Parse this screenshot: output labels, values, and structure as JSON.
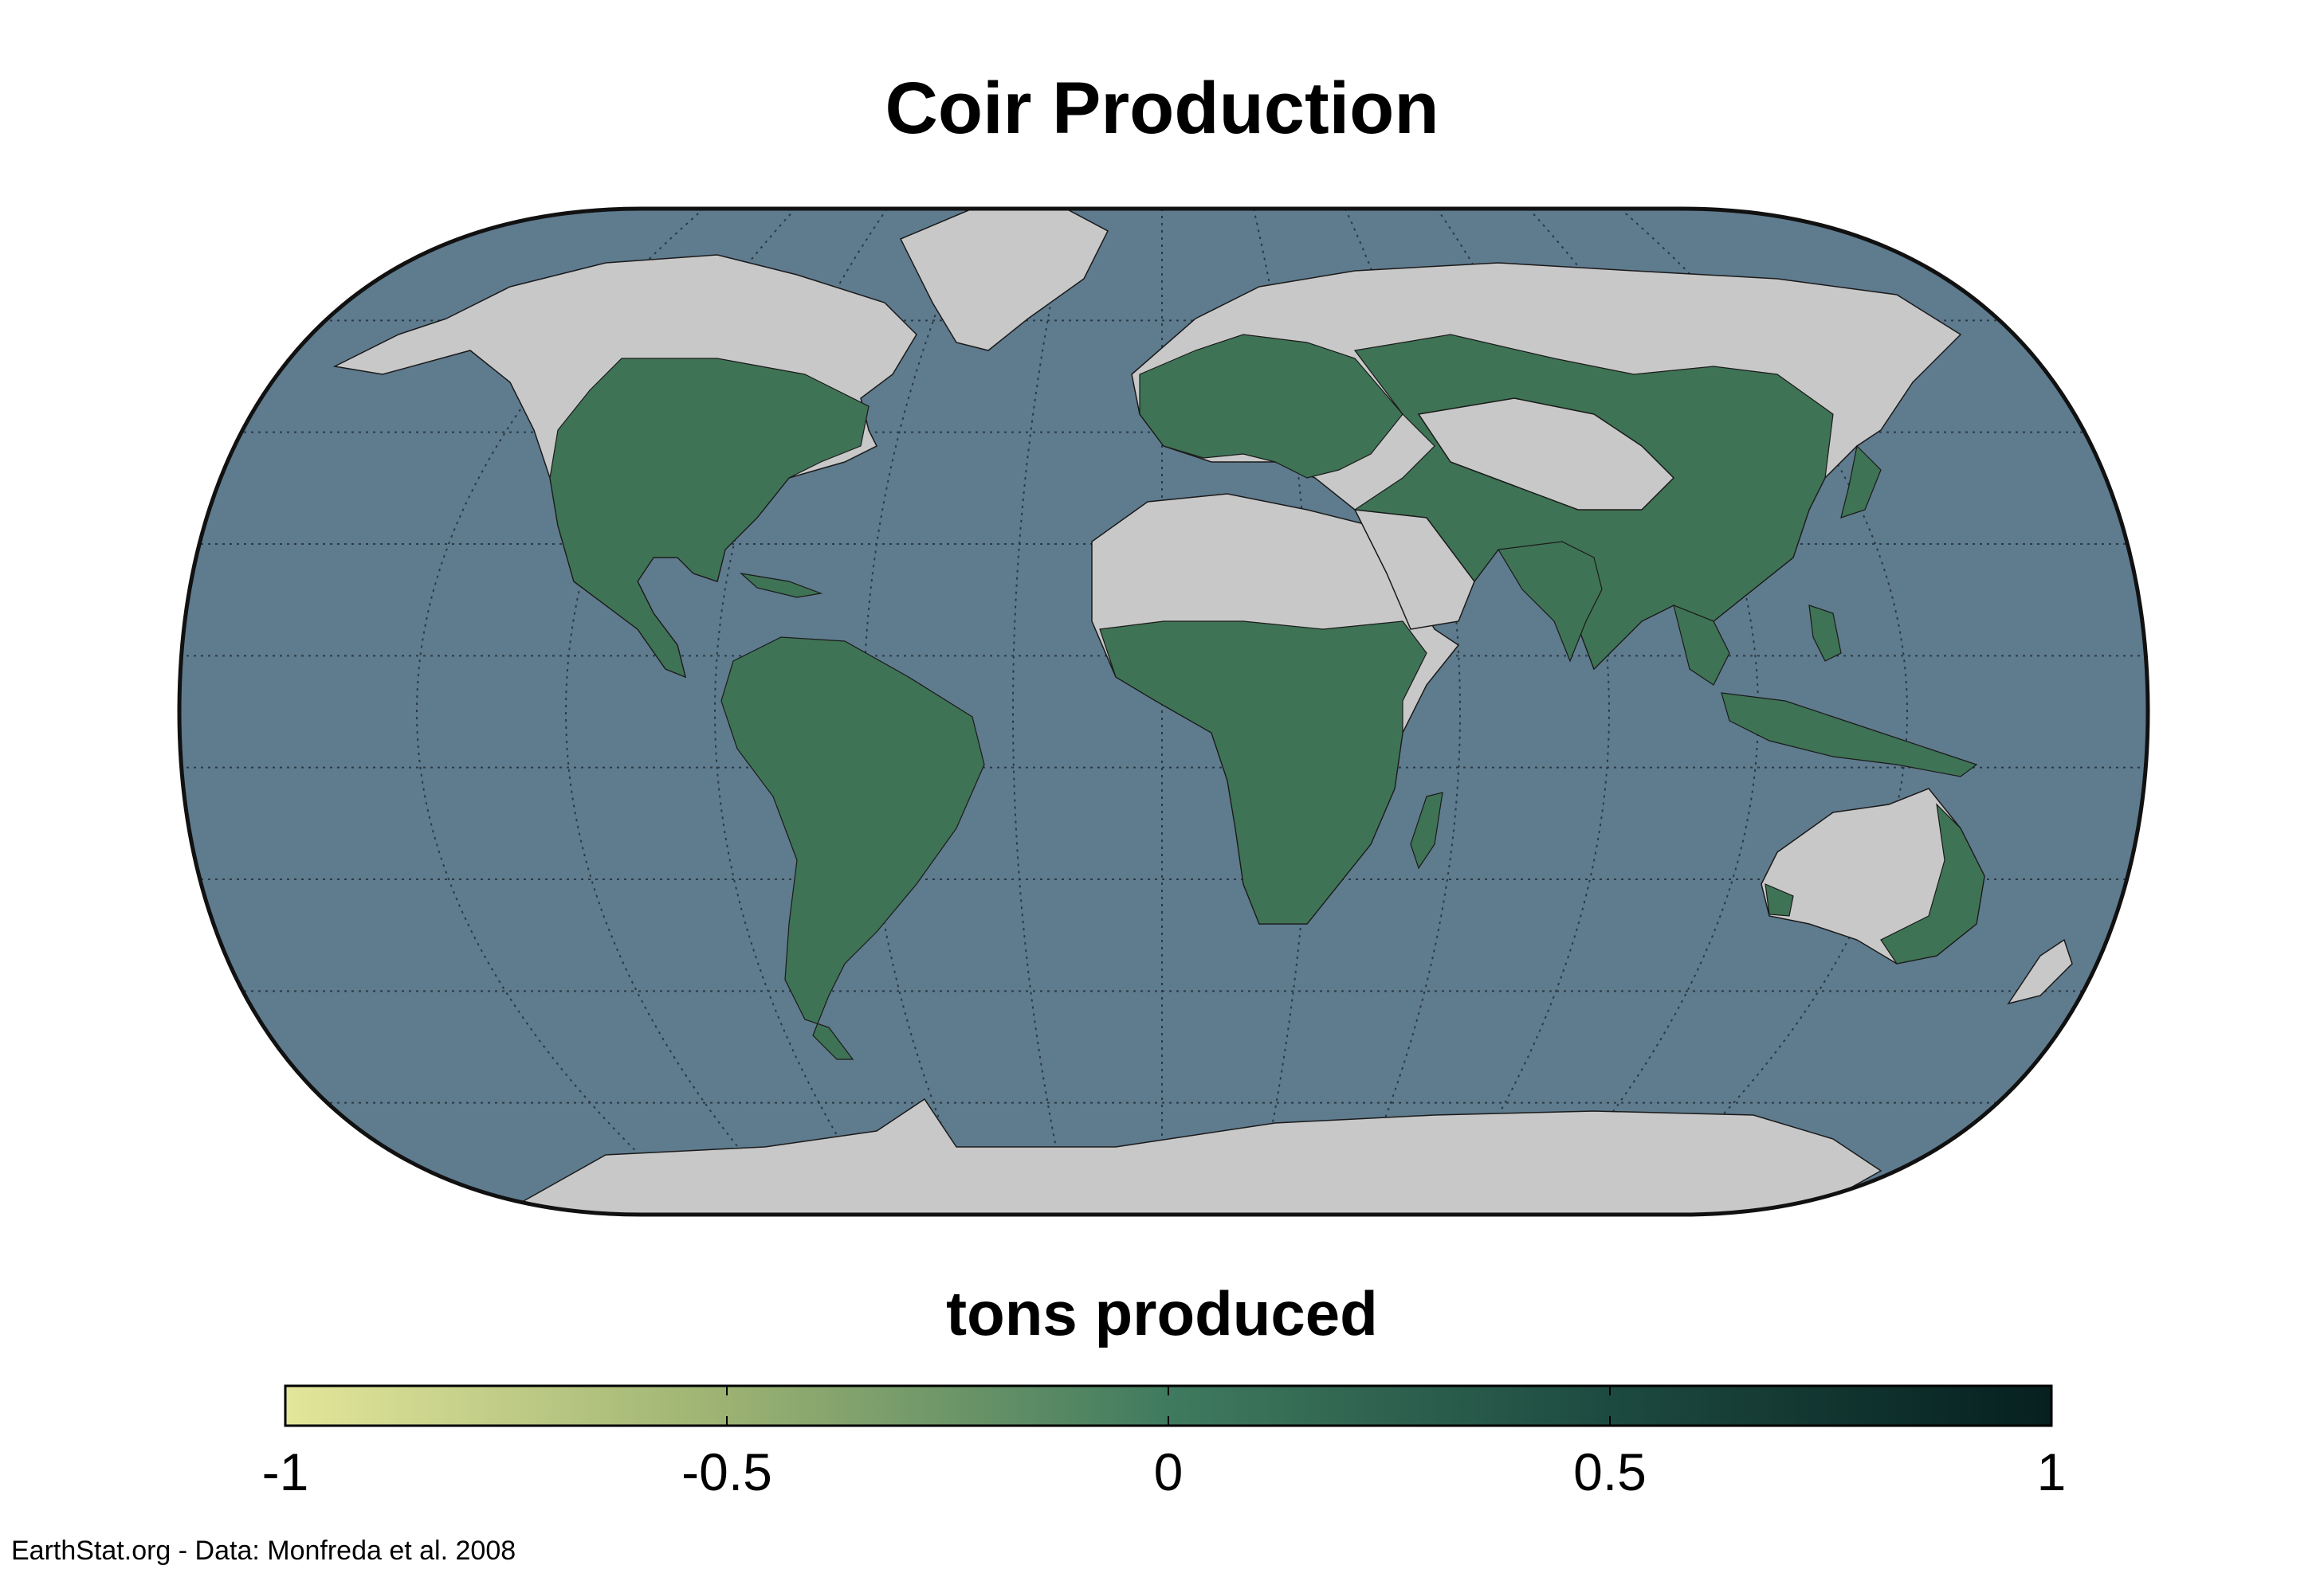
{
  "title": "Coir Production",
  "colors": {
    "ocean": "#5f7b8e",
    "land_empty": "#c8c8c8",
    "land_production": "#3f7355",
    "borders": "#1a1a1a",
    "frame": "#111111",
    "graticule": "#2a3a44"
  },
  "colorbar": {
    "title": "tons produced",
    "ticks": [
      "-1",
      "-0.5",
      "0",
      "0.5",
      "1"
    ],
    "range": [
      -1,
      1
    ],
    "stops": [
      "#e3e69a",
      "#9cb272",
      "#3f7a5e",
      "#1d4a40",
      "#06201f"
    ]
  },
  "credit": "EarthStat.org - Data: Monfreda et al. 2008"
}
